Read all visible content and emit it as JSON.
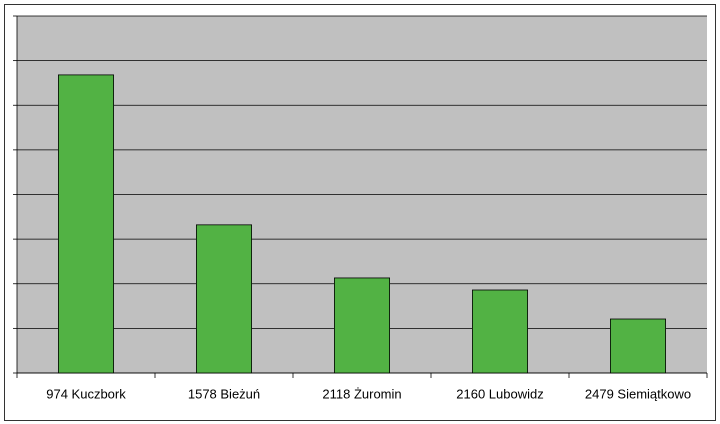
{
  "chart_data": {
    "type": "bar",
    "categories": [
      "974 Kuczbork",
      "1578 Bieżuń",
      "2118 Żuromin",
      "2160 Lubowidz",
      "2479 Siemiątkowo"
    ],
    "values": [
      6.68,
      3.32,
      2.13,
      1.86,
      1.21
    ],
    "color": "#52b244",
    "ylim": [
      0,
      8
    ],
    "yticks": [
      0,
      1,
      2,
      3,
      4,
      5,
      6,
      7,
      8
    ],
    "grid": true
  }
}
